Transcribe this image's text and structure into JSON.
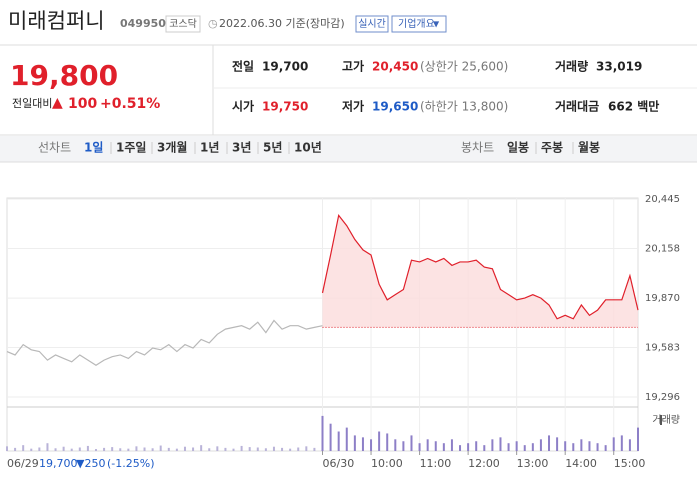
{
  "header": {
    "name": "미래컴퍼니",
    "code": "049950",
    "market": "코스닥",
    "date": "2022.06.30 기준(장마감)",
    "realtime_button": "실시간",
    "info_button": "기업개요"
  },
  "price": {
    "current": "19,800",
    "change_label": "전일대비",
    "change": "100",
    "change_pct": "+0.51%"
  },
  "stats": [
    {
      "label": "전일",
      "value": "19,700",
      "color": "#222222"
    },
    {
      "label": "고가",
      "value": "20,450",
      "note": "(상한가 25,600)",
      "color": "#e0202b"
    },
    {
      "label": "거래량",
      "value": "33,019",
      "color": "#222222"
    },
    {
      "label": "시가",
      "value": "19,750",
      "color": "#e0202b"
    },
    {
      "label": "저가",
      "value": "19,650",
      "note": "(하한가 13,800)",
      "color": "#1e5bc6"
    },
    {
      "label": "거래대금",
      "value": "662 백만",
      "color": "#222222"
    }
  ],
  "tabs": {
    "line_label": "선차트",
    "line_items": [
      "1일",
      "1주일",
      "3개월",
      "1년",
      "3년",
      "5년",
      "10년"
    ],
    "selected": 0,
    "candle_label": "봉차트",
    "candle_items": [
      "일봉",
      "주봉",
      "월봉"
    ]
  },
  "info": {
    "date": "06/29",
    "close": "19,700",
    "change": "▼250",
    "pct": "(-1.25%)"
  },
  "chart_data": {
    "type": "line",
    "volume_label": "거래량",
    "reference": 19700,
    "xlim": [
      0,
      780
    ],
    "ylim": [
      19238,
      20451
    ],
    "volume_ylim": [
      0,
      1000
    ],
    "yticks": [
      {
        "value": 20445,
        "label": "20,445"
      },
      {
        "value": 20158,
        "label": "20,158"
      },
      {
        "value": 19870,
        "label": "19,870"
      },
      {
        "value": 19583,
        "label": "19,583"
      },
      {
        "value": 19296,
        "label": "19,296"
      }
    ],
    "xticks": [
      {
        "value": 390,
        "label": "06/30"
      },
      {
        "value": 450,
        "label": "10:00"
      },
      {
        "value": 510,
        "label": "11:00"
      },
      {
        "value": 570,
        "label": "12:00"
      },
      {
        "value": 630,
        "label": "13:00"
      },
      {
        "value": 690,
        "label": "14:00"
      },
      {
        "value": 750,
        "label": "15:00"
      }
    ],
    "series": [
      {
        "color": "#b8b8b8",
        "x": [
          0,
          10,
          20,
          30,
          40,
          50,
          60,
          70,
          80,
          90,
          100,
          110,
          120,
          130,
          140,
          150,
          160,
          170,
          180,
          190,
          200,
          210,
          220,
          230,
          240,
          250,
          260,
          270,
          280,
          290,
          300,
          310,
          320,
          330,
          340,
          350,
          360,
          370,
          380,
          390
        ],
        "values": [
          19560,
          19540,
          19600,
          19570,
          19560,
          19510,
          19540,
          19520,
          19500,
          19540,
          19510,
          19480,
          19510,
          19530,
          19540,
          19520,
          19560,
          19540,
          19580,
          19570,
          19600,
          19560,
          19600,
          19580,
          19630,
          19610,
          19660,
          19690,
          19700,
          19710,
          19690,
          19730,
          19670,
          19740,
          19690,
          19710,
          19710,
          19690,
          19700,
          19710
        ],
        "volume": [
          120,
          80,
          150,
          60,
          90,
          200,
          70,
          110,
          60,
          90,
          130,
          50,
          80,
          100,
          70,
          60,
          120,
          90,
          70,
          140,
          80,
          60,
          110,
          90,
          150,
          70,
          120,
          80,
          60,
          130,
          100,
          90,
          70,
          110,
          80,
          60,
          90,
          120,
          80,
          100
        ]
      },
      {
        "color": "#e0202b",
        "fill": "#fbdcdc",
        "x": [
          390,
          400,
          410,
          420,
          430,
          440,
          450,
          460,
          470,
          480,
          490,
          500,
          510,
          520,
          530,
          540,
          550,
          560,
          570,
          580,
          590,
          600,
          610,
          620,
          630,
          640,
          650,
          660,
          670,
          680,
          690,
          700,
          710,
          720,
          730,
          740,
          750,
          760,
          770,
          780
        ],
        "values": [
          19900,
          20120,
          20350,
          20290,
          20210,
          20150,
          20120,
          19950,
          19860,
          19890,
          19920,
          20090,
          20080,
          20100,
          20080,
          20100,
          20060,
          20080,
          20080,
          20090,
          20050,
          20040,
          19920,
          19890,
          19860,
          19870,
          19890,
          19870,
          19830,
          19750,
          19770,
          19750,
          19830,
          19770,
          19800,
          19860,
          19860,
          19860,
          20000,
          19800
        ],
        "volume": [
          900,
          700,
          500,
          600,
          400,
          350,
          300,
          500,
          450,
          300,
          250,
          400,
          200,
          300,
          250,
          200,
          300,
          150,
          200,
          250,
          150,
          300,
          350,
          200,
          250,
          150,
          200,
          300,
          400,
          350,
          250,
          200,
          300,
          250,
          200,
          150,
          350,
          400,
          300,
          600
        ]
      }
    ]
  }
}
